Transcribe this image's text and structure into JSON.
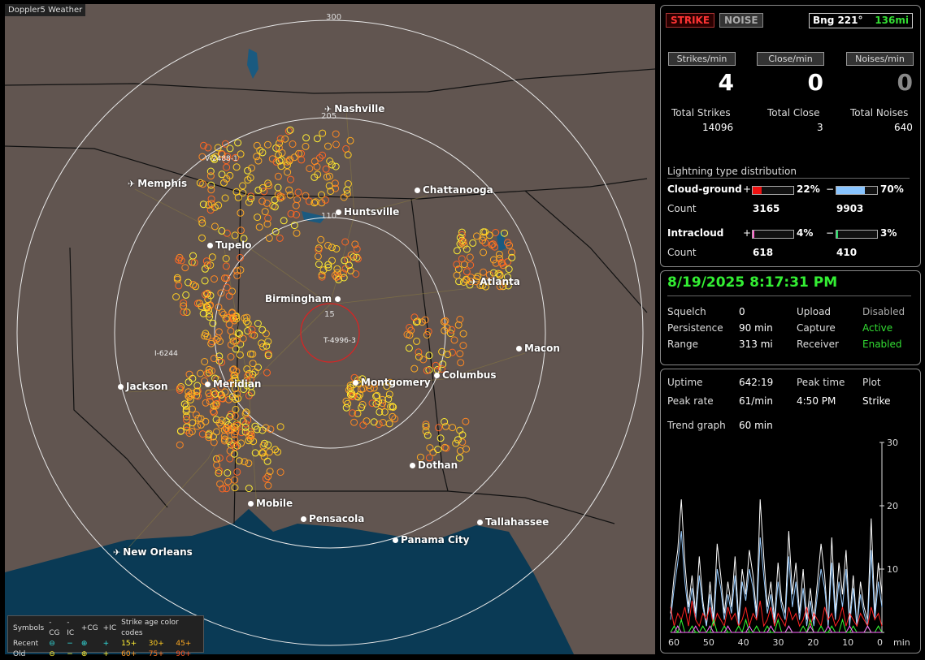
{
  "map": {
    "title": "Doppler5 Weather",
    "rings": [
      "300",
      "205",
      "110",
      "15"
    ],
    "cell_labels": [
      "V-2488-1",
      "I-6244",
      "T-4996-3"
    ],
    "cities": [
      {
        "name": "Nashville",
        "kind": "plane"
      },
      {
        "name": "Memphis",
        "kind": "plane"
      },
      {
        "name": "Chattanooga",
        "kind": "dot"
      },
      {
        "name": "Huntsville",
        "kind": "dot"
      },
      {
        "name": "Tupelo",
        "kind": "dot"
      },
      {
        "name": "Atlanta",
        "kind": "plane"
      },
      {
        "name": "Birmingham",
        "kind": "dot"
      },
      {
        "name": "Macon",
        "kind": "dot"
      },
      {
        "name": "Jackson",
        "kind": "dot"
      },
      {
        "name": "Meridian",
        "kind": "dot"
      },
      {
        "name": "Montgomery",
        "kind": "dot"
      },
      {
        "name": "Columbus",
        "kind": "dot"
      },
      {
        "name": "Dothan",
        "kind": "dot"
      },
      {
        "name": "Mobile",
        "kind": "dot"
      },
      {
        "name": "Pensacola",
        "kind": "dot"
      },
      {
        "name": "Tallahassee",
        "kind": "dot"
      },
      {
        "name": "Panama City",
        "kind": "dot"
      },
      {
        "name": "New Orleans",
        "kind": "plane"
      }
    ],
    "legend": {
      "header": [
        "Symbols",
        "-CG",
        "-IC",
        "+CG",
        "+IC",
        "Strike age color codes"
      ],
      "recent": {
        "label": "Recent",
        "symbols": [
          "⊖",
          "−",
          "⊕",
          "+"
        ],
        "ages": [
          "15+",
          "30+",
          "45+"
        ]
      },
      "old": {
        "label": "Old",
        "symbols": [
          "⊖",
          "−",
          "⊕",
          "+"
        ],
        "ages": [
          "60+",
          "75+",
          "90+"
        ]
      }
    },
    "colors": {
      "land": "#615550",
      "water": "#0a3a55",
      "ring": "#e8e8e8",
      "close_ring": "#dd2222",
      "recent": "#ffee33",
      "mid": "#ffaa22",
      "old": "#ff7722"
    }
  },
  "top": {
    "strike_tag": "STRIKE",
    "noise_tag": "NOISE",
    "bearing": "Bng 221°",
    "distance": "136mi"
  },
  "rates": {
    "strikes_label": "Strikes/min",
    "close_label": "Close/min",
    "noises_label": "Noises/min",
    "strikes_value": "4",
    "close_value": "0",
    "noises_value": "0"
  },
  "totals": {
    "strikes_label": "Total Strikes",
    "close_label": "Total Close",
    "noises_label": "Total Noises",
    "strikes_value": "14096",
    "close_value": "3",
    "noises_value": "640"
  },
  "distribution": {
    "title": "Lightning type distribution",
    "cg_label": "Cloud-ground",
    "ic_label": "Intracloud",
    "count_label": "Count",
    "plus": "+",
    "minus": "−",
    "cg_plus_pct": "22%",
    "cg_minus_pct": "70%",
    "cg_plus_count": "3165",
    "cg_minus_count": "9903",
    "ic_plus_pct": "4%",
    "ic_minus_pct": "3%",
    "ic_plus_count": "618",
    "ic_minus_count": "410",
    "cg_plus_frac": 0.22,
    "cg_minus_frac": 0.7,
    "ic_plus_frac": 0.04,
    "ic_minus_frac": 0.03
  },
  "status": {
    "datetime": "8/19/2025 8:17:31 PM",
    "squelch_label": "Squelch",
    "squelch_value": "0",
    "persistence_label": "Persistence",
    "persistence_value": "90 min",
    "range_label": "Range",
    "range_value": "313 mi",
    "upload_label": "Upload",
    "upload_value": "Disabled",
    "capture_label": "Capture",
    "capture_value": "Active",
    "receiver_label": "Receiver",
    "receiver_value": "Enabled"
  },
  "stats": {
    "uptime_label": "Uptime",
    "uptime_value": "642:19",
    "peak_time_label": "Peak time",
    "peak_time_value": "4:50 PM",
    "plot_label": "Plot",
    "plot_value": "Strike",
    "peak_rate_label": "Peak rate",
    "peak_rate_value": "61/min",
    "trend_label": "Trend graph",
    "trend_value": "60 min"
  },
  "chart_data": {
    "type": "line",
    "xlabel": "min",
    "x_ticks": [
      "60",
      "50",
      "40",
      "30",
      "20",
      "10",
      "0"
    ],
    "y_ticks": [
      "30",
      "20",
      "10",
      "0"
    ],
    "ylim": [
      0,
      30
    ],
    "series": [
      {
        "color": "#ffffff",
        "values": [
          3,
          9,
          13,
          21,
          11,
          4,
          9,
          3,
          12,
          5,
          1,
          8,
          2,
          14,
          9,
          3,
          8,
          4,
          12,
          2,
          10,
          6,
          13,
          9,
          3,
          21,
          12,
          4,
          8,
          2,
          11,
          5,
          3,
          16,
          6,
          11,
          3,
          10,
          2,
          7,
          2,
          8,
          14,
          9,
          1,
          15,
          3,
          11,
          6,
          13,
          2,
          9,
          1,
          8,
          4,
          2,
          18,
          3,
          11,
          6
        ]
      },
      {
        "color": "#99ccff",
        "values": [
          2,
          7,
          11,
          16,
          8,
          3,
          7,
          2,
          9,
          4,
          1,
          6,
          1,
          10,
          7,
          2,
          6,
          3,
          9,
          1,
          8,
          5,
          10,
          7,
          2,
          15,
          9,
          3,
          6,
          1,
          8,
          4,
          2,
          12,
          4,
          8,
          2,
          7,
          1,
          5,
          1,
          6,
          10,
          7,
          1,
          11,
          2,
          8,
          4,
          10,
          1,
          7,
          1,
          6,
          3,
          1,
          13,
          2,
          8,
          4
        ]
      },
      {
        "color": "#ff2222",
        "values": [
          4,
          1,
          3,
          2,
          4,
          1,
          5,
          2,
          1,
          3,
          2,
          4,
          1,
          3,
          2,
          1,
          4,
          2,
          3,
          1,
          2,
          4,
          1,
          3,
          2,
          5,
          1,
          2,
          4,
          1,
          3,
          2,
          1,
          4,
          2,
          3,
          1,
          2,
          4,
          1,
          3,
          2,
          1,
          4,
          2,
          3,
          1,
          2,
          4,
          1,
          3,
          2,
          1,
          3,
          2,
          1,
          4,
          2,
          3,
          1
        ]
      },
      {
        "color": "#33ff33",
        "values": [
          0,
          1,
          0,
          2,
          0,
          0,
          1,
          0,
          0,
          1,
          0,
          0,
          2,
          0,
          0,
          1,
          0,
          0,
          0,
          1,
          0,
          2,
          0,
          0,
          1,
          0,
          0,
          1,
          0,
          0,
          2,
          0,
          0,
          1,
          0,
          0,
          0,
          1,
          0,
          2,
          0,
          0,
          1,
          0,
          0,
          1,
          0,
          0,
          2,
          0,
          0,
          1,
          0,
          0,
          0,
          1,
          0,
          0,
          1,
          0
        ]
      },
      {
        "color": "#ff66ff",
        "values": [
          0,
          0,
          1,
          0,
          0,
          0,
          0,
          1,
          0,
          0,
          0,
          1,
          0,
          0,
          0,
          0,
          1,
          0,
          0,
          0,
          0,
          0,
          1,
          0,
          0,
          0,
          0,
          0,
          1,
          0,
          0,
          0,
          0,
          1,
          0,
          0,
          0,
          0,
          0,
          1,
          0,
          0,
          0,
          0,
          1,
          0,
          0,
          0,
          0,
          0,
          1,
          0,
          0,
          0,
          0,
          1,
          0,
          0,
          0,
          0
        ]
      }
    ]
  }
}
